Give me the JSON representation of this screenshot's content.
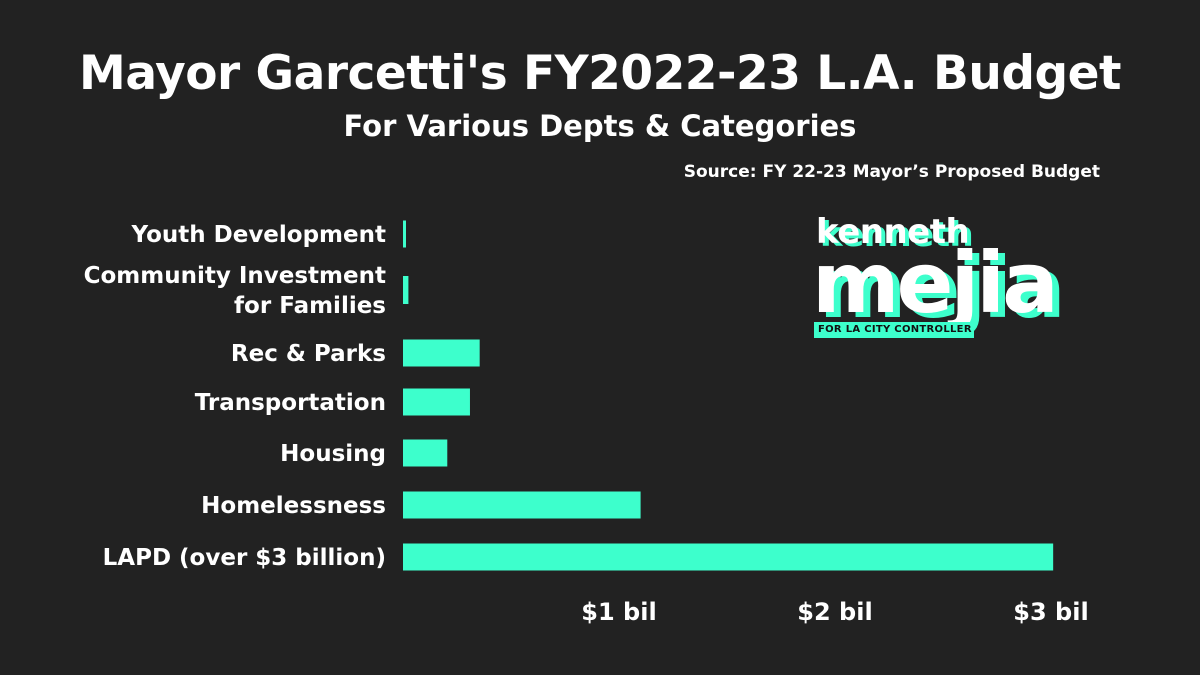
{
  "chart_data": {
    "type": "bar",
    "orientation": "horizontal",
    "title": "Mayor Garcetti's FY2022-23 L.A. Budget",
    "subtitle": "For Various Depts & Categories",
    "source": "Source: FY 22-23 Mayor’s Proposed Budget",
    "categories": [
      [
        "Youth Development"
      ],
      [
        "Community Investment",
        "for Families"
      ],
      [
        "Rec & Parks"
      ],
      [
        "Transportation"
      ],
      [
        "Housing"
      ],
      [
        "Homelessness"
      ],
      [
        "LAPD (over $3 billion)"
      ]
    ],
    "values": [
      0.006,
      0.025,
      0.355,
      0.31,
      0.205,
      1.1,
      3.01
    ],
    "unit": "billion USD",
    "xlim": [
      0,
      3.2
    ],
    "xticks": [
      1,
      2,
      3
    ],
    "xtick_labels": [
      "$1 bil",
      "$2 bil",
      "$3 bil"
    ],
    "grid": false,
    "bar_color": "#3dffcc"
  },
  "logo": {
    "first_name": "kenneth",
    "last_name": "mejia",
    "tagline": "FOR LA CITY CONTROLLER"
  }
}
